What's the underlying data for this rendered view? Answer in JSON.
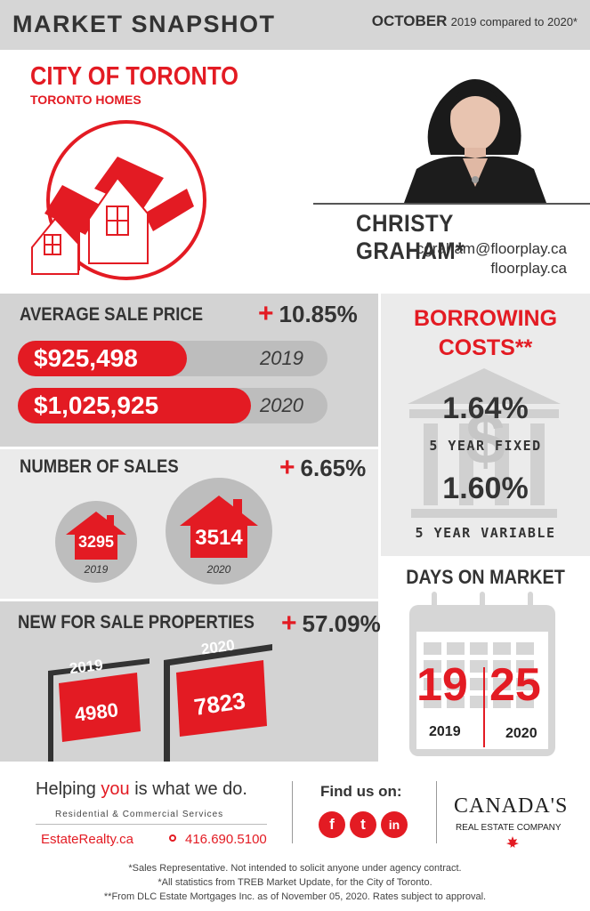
{
  "header": {
    "title": "MARKET SNAPSHOT",
    "month": "OCTOBER",
    "compare": "2019 compared to 2020*"
  },
  "region": {
    "city": "CITY OF TORONTO",
    "subtitle": "TORONTO HOMES"
  },
  "agent": {
    "name": "CHRISTY GRAHAM*",
    "email": "cgraham@floorplay.ca",
    "website": "floorplay.ca"
  },
  "average_sale_price": {
    "heading": "AVERAGE SALE PRICE",
    "change": "10.85%",
    "rows": [
      {
        "value": "$925,498",
        "year": "2019",
        "fraction": 0.9
      },
      {
        "value": "$1,025,925",
        "year": "2020",
        "fraction": 1.0
      }
    ]
  },
  "number_of_sales": {
    "heading": "NUMBER OF SALES",
    "change": "6.65%",
    "items": [
      {
        "value": "3295",
        "year": "2019"
      },
      {
        "value": "3514",
        "year": "2020"
      }
    ]
  },
  "new_for_sale": {
    "heading": "NEW FOR SALE PROPERTIES",
    "change": "57.09%",
    "items": [
      {
        "value": "4980",
        "year": "2019"
      },
      {
        "value": "7823",
        "year": "2020"
      }
    ]
  },
  "borrowing": {
    "heading_line1": "BORROWING",
    "heading_line2": "COSTS**",
    "fixed_rate": "1.64%",
    "fixed_label": "5 YEAR FIXED",
    "variable_rate": "1.60%",
    "variable_label": "5 YEAR VARIABLE",
    "dollar_icon": "$"
  },
  "days_on_market": {
    "heading": "DAYS ON MARKET",
    "values": [
      {
        "value": "19",
        "year": "2019"
      },
      {
        "value": "25",
        "year": "2020"
      }
    ]
  },
  "footer": {
    "tagline_start": "Helping ",
    "tagline_you": "you",
    "tagline_end": " is what we do.",
    "services": "Residential & Commercial Services",
    "site": "EstateRealty.ca",
    "phone": "416.690.5100",
    "find_us": "Find us on:",
    "social": [
      {
        "label": "f",
        "icon": "facebook-icon"
      },
      {
        "label": "t",
        "icon": "twitter-icon"
      },
      {
        "label": "in",
        "icon": "linkedin-icon"
      }
    ],
    "brand_line1": "CANADA'S",
    "brand_line2": "REAL ESTATE COMPANY",
    "disclaimers": [
      "*Sales Representative. Not intended to solicit anyone under agency contract.",
      "*All statistics from TREB Market Update, for the City of Toronto.",
      "**From DLC Estate Mortgages Inc. as of November 05, 2020. Rates subject to approval."
    ]
  },
  "colors": {
    "accent": "#e31b23",
    "dark": "#333333",
    "panel": "#d3d3d3",
    "panel_light": "#ebebeb"
  }
}
